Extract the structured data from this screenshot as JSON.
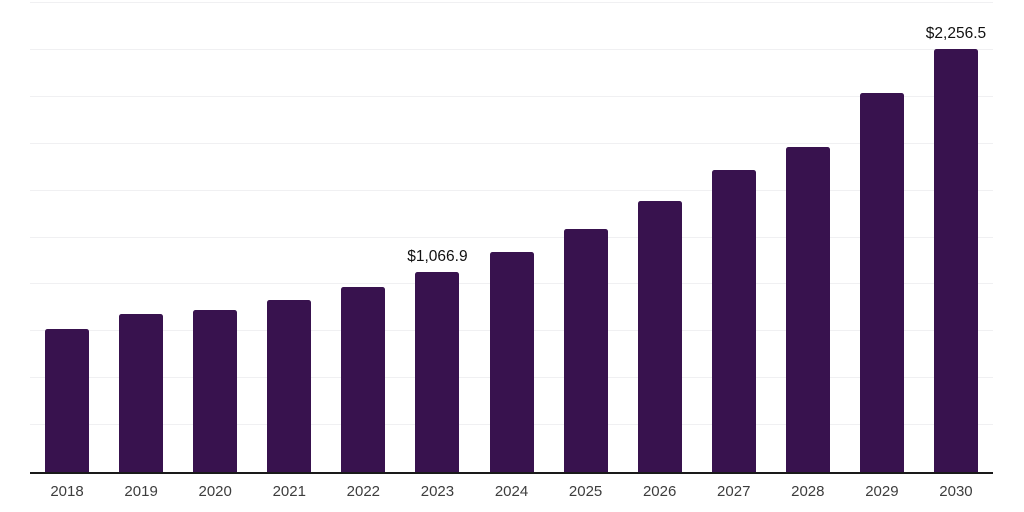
{
  "chart_data": {
    "type": "bar",
    "title": "",
    "xlabel": "",
    "ylabel": "",
    "categories": [
      "2018",
      "2019",
      "2020",
      "2021",
      "2022",
      "2023",
      "2024",
      "2025",
      "2026",
      "2027",
      "2028",
      "2029",
      "2030"
    ],
    "values": [
      765,
      842,
      863,
      917,
      988,
      1066.9,
      1174,
      1296,
      1443,
      1612,
      1733,
      2020,
      2256.5
    ],
    "data_labels": {
      "2023": "$1,066.9",
      "2030": "$2,256.5"
    },
    "ylim": [
      0,
      2500
    ],
    "gridline_step": 250,
    "grid": "horizontal-only",
    "y_tick_labels": "none",
    "legend_position": "none",
    "colors": {
      "bar": "#38124E",
      "axis_line": "#1a1a1a",
      "gridline": "#f0f0f2",
      "x_tick_label": "#3d3d3d",
      "data_label": "#111111",
      "background": "#ffffff"
    }
  }
}
